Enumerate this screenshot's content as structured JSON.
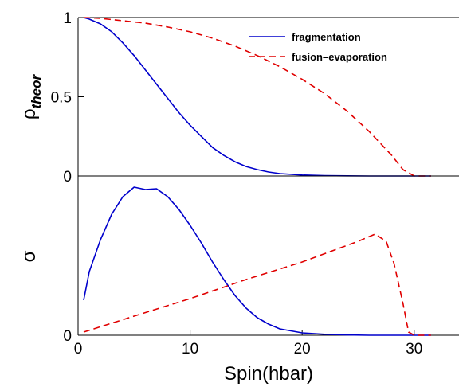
{
  "chart_data": [
    {
      "type": "line",
      "panel": "top",
      "ylabel_main": "ρ",
      "ylabel_sub": "theor",
      "xlim": [
        0,
        34
      ],
      "ylim": [
        0,
        1
      ],
      "y_ticks": [
        "0",
        "0.5",
        "1"
      ],
      "y_tick_values": [
        0,
        0.5,
        1
      ],
      "grid": false,
      "legend_position": "top-right",
      "series": [
        {
          "name": "fragmentation",
          "color": "#0000cc",
          "style": "solid",
          "x": [
            0.5,
            1,
            2,
            3,
            4,
            5,
            6,
            7,
            8,
            9,
            10,
            11,
            12,
            13,
            14,
            15,
            16,
            17,
            18,
            20,
            22,
            24,
            26,
            28,
            30,
            31.5
          ],
          "y": [
            1.0,
            0.99,
            0.96,
            0.91,
            0.84,
            0.76,
            0.67,
            0.58,
            0.49,
            0.4,
            0.32,
            0.25,
            0.18,
            0.13,
            0.09,
            0.06,
            0.04,
            0.025,
            0.015,
            0.006,
            0.002,
            0.001,
            0.0,
            0.0,
            0.0,
            0.0
          ]
        },
        {
          "name": "fusion–evaporation",
          "color": "#e00000",
          "style": "dashed",
          "x": [
            0.5,
            2,
            4,
            6,
            8,
            10,
            12,
            14,
            16,
            18,
            20,
            22,
            24,
            26,
            28,
            29,
            30,
            31.5
          ],
          "y": [
            1.0,
            0.995,
            0.98,
            0.965,
            0.94,
            0.91,
            0.87,
            0.82,
            0.76,
            0.69,
            0.61,
            0.52,
            0.41,
            0.28,
            0.13,
            0.04,
            0.0,
            0.0
          ]
        }
      ]
    },
    {
      "type": "line",
      "panel": "bottom",
      "ylabel": "σ",
      "xlabel": "Spin(hbar)",
      "xlim": [
        0,
        34
      ],
      "ylim": [
        0,
        1
      ],
      "y_ticks": [
        "0"
      ],
      "y_tick_values": [
        0
      ],
      "x_ticks": [
        "0",
        "10",
        "20",
        "30"
      ],
      "x_tick_values": [
        0,
        10,
        20,
        30
      ],
      "grid": false,
      "series": [
        {
          "name": "fragmentation",
          "color": "#0000cc",
          "style": "solid",
          "x": [
            0.5,
            1,
            2,
            3,
            4,
            5,
            6,
            7,
            8,
            9,
            10,
            11,
            12,
            13,
            14,
            15,
            16,
            17,
            18,
            20,
            22,
            24,
            26,
            28,
            30,
            31.5
          ],
          "y": [
            0.22,
            0.4,
            0.6,
            0.76,
            0.87,
            0.93,
            0.915,
            0.92,
            0.87,
            0.79,
            0.69,
            0.58,
            0.46,
            0.35,
            0.25,
            0.17,
            0.11,
            0.07,
            0.04,
            0.015,
            0.006,
            0.002,
            0.0,
            0.0,
            0.0,
            0.0
          ]
        },
        {
          "name": "fusion–evaporation",
          "color": "#e00000",
          "style": "dashed",
          "x": [
            0.5,
            5,
            10,
            15,
            20,
            25,
            26.5,
            27.5,
            28.2,
            29,
            29.5,
            30,
            31.5
          ],
          "y": [
            0.02,
            0.12,
            0.23,
            0.35,
            0.46,
            0.59,
            0.635,
            0.59,
            0.45,
            0.2,
            0.02,
            0.0,
            0.0
          ]
        }
      ]
    }
  ]
}
